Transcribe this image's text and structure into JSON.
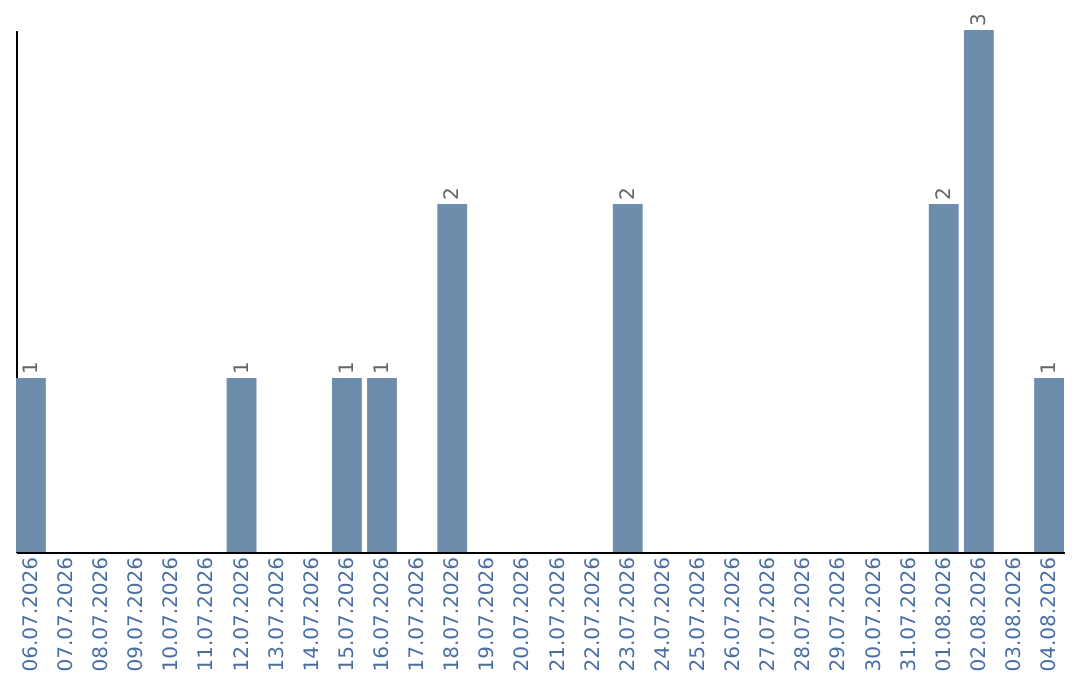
{
  "chart_data": {
    "type": "bar",
    "categories": [
      "06.07.2026",
      "07.07.2026",
      "08.07.2026",
      "09.07.2026",
      "10.07.2026",
      "11.07.2026",
      "12.07.2026",
      "13.07.2026",
      "14.07.2026",
      "15.07.2026",
      "16.07.2026",
      "17.07.2026",
      "18.07.2026",
      "19.07.2026",
      "20.07.2026",
      "21.07.2026",
      "22.07.2026",
      "23.07.2026",
      "24.07.2026",
      "25.07.2026",
      "26.07.2026",
      "27.07.2026",
      "28.07.2026",
      "29.07.2026",
      "30.07.2026",
      "31.07.2026",
      "01.08.2026",
      "02.08.2026",
      "03.08.2026",
      "04.08.2026"
    ],
    "values": [
      1,
      0,
      0,
      0,
      0,
      0,
      1,
      0,
      0,
      1,
      1,
      0,
      2,
      0,
      0,
      0,
      0,
      2,
      0,
      0,
      0,
      0,
      0,
      0,
      0,
      0,
      2,
      3,
      0,
      1
    ],
    "value_labels": [
      "1",
      null,
      null,
      null,
      null,
      null,
      "1",
      null,
      null,
      "1",
      "1",
      null,
      "2",
      null,
      null,
      null,
      null,
      "2",
      null,
      null,
      null,
      null,
      null,
      null,
      null,
      null,
      "2",
      "3",
      null,
      "1"
    ],
    "color": "#6d8dad",
    "tick_labels": "x"
  }
}
